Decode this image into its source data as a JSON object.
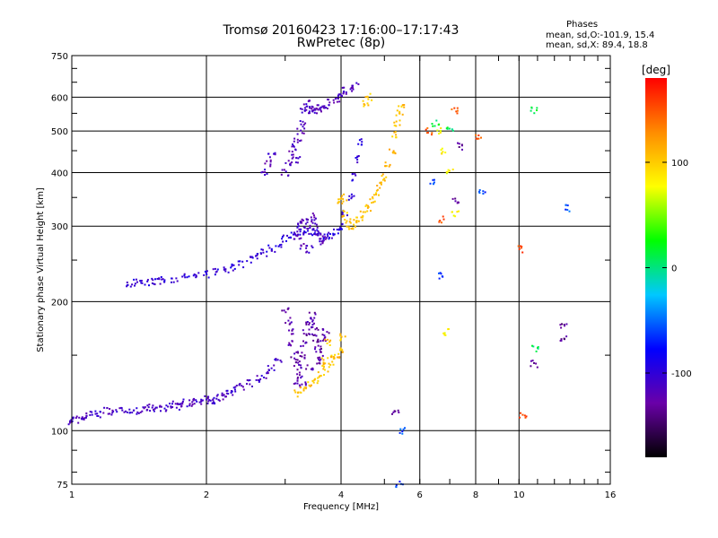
{
  "title": "Tromsø 20160423 17:16:00–17:17:43",
  "subtitle": "RwPretec (8p)",
  "phases": {
    "heading": "Phases",
    "line1": "mean, sd,O:-101.9, 15.4",
    "line2": "mean, sd,X:  89.4, 18.8"
  },
  "chart_data": {
    "type": "scatter",
    "title": "Tromsø 20160423 17:16:00–17:17:43",
    "subtitle": "RwPretec (8p)",
    "xlabel": "Frequency [MHz]",
    "ylabel": "Stationary phase Virtual Height [km]",
    "x_scale": "log",
    "y_scale": "log",
    "xlim": [
      1,
      16
    ],
    "ylim": [
      75,
      750
    ],
    "x_ticks": [
      1,
      2,
      4,
      6,
      8,
      10,
      16
    ],
    "x_grid": [
      1,
      2,
      4,
      6,
      8,
      10,
      16
    ],
    "y_ticks": [
      75,
      100,
      200,
      300,
      400,
      500,
      600,
      750
    ],
    "grid": true,
    "colorbar": {
      "label": "[deg]",
      "ticks": [
        100,
        0,
        -100
      ],
      "range": [
        -180,
        180
      ],
      "colors": [
        "#000000",
        "#6a00a8",
        "#0000ff",
        "#00c8ff",
        "#00ff00",
        "#ffff00",
        "#ff8c00",
        "#ff0000"
      ]
    },
    "series": [
      {
        "phase": -110,
        "points": [
          [
            1.0,
            105
          ],
          [
            1.02,
            107
          ],
          [
            1.05,
            106
          ],
          [
            1.08,
            108
          ],
          [
            1.12,
            110
          ],
          [
            1.16,
            109
          ],
          [
            1.2,
            111
          ],
          [
            1.25,
            110
          ],
          [
            1.3,
            111
          ],
          [
            1.35,
            112
          ],
          [
            1.4,
            111
          ],
          [
            1.45,
            112
          ],
          [
            1.5,
            113
          ],
          [
            1.55,
            112
          ],
          [
            1.6,
            113
          ],
          [
            1.65,
            114
          ],
          [
            1.7,
            115
          ],
          [
            1.75,
            114
          ],
          [
            1.8,
            116
          ],
          [
            1.85,
            116
          ],
          [
            1.9,
            117
          ],
          [
            1.95,
            117
          ],
          [
            2.0,
            118
          ],
          [
            2.05,
            117
          ],
          [
            2.1,
            118
          ],
          [
            2.15,
            119
          ],
          [
            2.2,
            121
          ],
          [
            2.25,
            123
          ],
          [
            2.3,
            125
          ],
          [
            2.4,
            127
          ],
          [
            2.5,
            129
          ],
          [
            2.6,
            132
          ],
          [
            2.7,
            135
          ],
          [
            2.8,
            140
          ],
          [
            2.9,
            145
          ]
        ]
      },
      {
        "phase": -125,
        "points": [
          [
            3.0,
            190
          ],
          [
            3.05,
            180
          ],
          [
            3.1,
            170
          ],
          [
            3.1,
            160
          ],
          [
            3.15,
            150
          ],
          [
            3.2,
            145
          ],
          [
            3.2,
            140
          ],
          [
            3.25,
            135
          ],
          [
            3.3,
            150
          ],
          [
            3.3,
            160
          ],
          [
            3.35,
            170
          ],
          [
            3.4,
            175
          ],
          [
            3.4,
            180
          ],
          [
            3.45,
            185
          ],
          [
            3.5,
            175
          ],
          [
            3.5,
            165
          ],
          [
            3.55,
            155
          ],
          [
            3.55,
            145
          ],
          [
            3.6,
            150
          ],
          [
            3.6,
            160
          ],
          [
            3.65,
            165
          ],
          [
            3.7,
            170
          ],
          [
            3.2,
            130
          ],
          [
            3.3,
            128
          ],
          [
            3.4,
            140
          ]
        ]
      },
      {
        "phase": -100,
        "points": [
          [
            1.35,
            220
          ],
          [
            1.4,
            221
          ],
          [
            1.45,
            220
          ],
          [
            1.5,
            222
          ],
          [
            1.55,
            223
          ],
          [
            1.6,
            224
          ],
          [
            1.7,
            226
          ],
          [
            1.8,
            228
          ],
          [
            1.9,
            230
          ],
          [
            2.0,
            232
          ],
          [
            2.1,
            235
          ],
          [
            2.2,
            238
          ],
          [
            2.3,
            241
          ],
          [
            2.4,
            245
          ],
          [
            2.5,
            250
          ],
          [
            2.6,
            255
          ],
          [
            2.7,
            260
          ],
          [
            2.8,
            266
          ],
          [
            2.9,
            272
          ],
          [
            3.0,
            280
          ],
          [
            3.1,
            285
          ],
          [
            3.2,
            288
          ],
          [
            3.3,
            290
          ],
          [
            3.4,
            292
          ],
          [
            3.5,
            290
          ],
          [
            3.6,
            285
          ],
          [
            3.7,
            282
          ],
          [
            3.8,
            285
          ],
          [
            3.9,
            290
          ],
          [
            4.0,
            300
          ],
          [
            4.1,
            320
          ],
          [
            4.2,
            350
          ],
          [
            4.3,
            390
          ],
          [
            4.35,
            430
          ],
          [
            4.4,
            470
          ]
        ]
      },
      {
        "phase": -115,
        "points": [
          [
            3.2,
            280
          ],
          [
            3.25,
            300
          ],
          [
            3.3,
            310
          ],
          [
            3.35,
            295
          ],
          [
            3.4,
            305
          ],
          [
            3.45,
            315
          ],
          [
            3.5,
            300
          ],
          [
            3.55,
            290
          ],
          [
            3.6,
            275
          ],
          [
            3.65,
            285
          ],
          [
            3.3,
            270
          ],
          [
            3.4,
            265
          ],
          [
            3.0,
            400
          ],
          [
            3.05,
            420
          ],
          [
            3.1,
            440
          ],
          [
            3.15,
            460
          ],
          [
            3.2,
            480
          ],
          [
            3.2,
            430
          ],
          [
            3.25,
            500
          ],
          [
            3.3,
            520
          ],
          [
            3.3,
            560
          ],
          [
            3.35,
            580
          ],
          [
            3.4,
            570
          ],
          [
            3.45,
            560
          ],
          [
            3.5,
            555
          ],
          [
            3.55,
            565
          ],
          [
            3.6,
            570
          ],
          [
            3.7,
            575
          ],
          [
            3.8,
            585
          ],
          [
            3.9,
            595
          ],
          [
            4.0,
            610
          ],
          [
            4.1,
            620
          ],
          [
            4.2,
            630
          ],
          [
            4.3,
            640
          ],
          [
            2.7,
            400
          ],
          [
            2.75,
            420
          ],
          [
            2.8,
            440
          ]
        ]
      },
      {
        "phase": 105,
        "points": [
          [
            4.0,
            340
          ],
          [
            4.05,
            350
          ],
          [
            4.1,
            320
          ],
          [
            4.15,
            310
          ],
          [
            4.2,
            300
          ],
          [
            4.3,
            305
          ],
          [
            4.4,
            310
          ],
          [
            4.5,
            320
          ],
          [
            4.6,
            330
          ],
          [
            4.7,
            345
          ],
          [
            4.8,
            360
          ],
          [
            4.9,
            375
          ],
          [
            5.0,
            390
          ],
          [
            5.1,
            420
          ],
          [
            5.2,
            450
          ],
          [
            5.3,
            490
          ],
          [
            5.35,
            520
          ],
          [
            5.4,
            550
          ],
          [
            5.45,
            570
          ],
          [
            4.55,
            580
          ],
          [
            4.6,
            600
          ],
          [
            3.2,
            122
          ],
          [
            3.3,
            124
          ],
          [
            3.4,
            128
          ],
          [
            3.5,
            131
          ],
          [
            3.6,
            135
          ],
          [
            3.7,
            140
          ],
          [
            3.8,
            145
          ],
          [
            3.9,
            150
          ],
          [
            4.0,
            155
          ],
          [
            4.05,
            165
          ],
          [
            3.75,
            160
          ],
          [
            3.85,
            150
          ],
          [
            3.65,
            145
          ]
        ]
      },
      {
        "phase": 80,
        "points": [
          [
            6.6,
            500
          ],
          [
            7.2,
            320
          ],
          [
            6.8,
            450
          ],
          [
            7.0,
            400
          ],
          [
            6.9,
            170
          ]
        ]
      },
      {
        "phase": 150,
        "points": [
          [
            6.3,
            500
          ],
          [
            7.2,
            560
          ],
          [
            6.7,
            310
          ],
          [
            8.1,
            480
          ],
          [
            10.0,
            265
          ],
          [
            10.2,
            108
          ]
        ]
      },
      {
        "phase": 10,
        "points": [
          [
            10.8,
            560
          ],
          [
            7.0,
            510
          ],
          [
            6.5,
            520
          ],
          [
            10.9,
            155
          ]
        ]
      },
      {
        "phase": -60,
        "points": [
          [
            6.4,
            380
          ],
          [
            6.7,
            230
          ],
          [
            8.3,
            360
          ],
          [
            12.8,
            330
          ],
          [
            5.4,
            75
          ],
          [
            5.5,
            100
          ]
        ]
      },
      {
        "phase": -135,
        "points": [
          [
            7.4,
            460
          ],
          [
            7.2,
            345
          ],
          [
            12.6,
            175
          ],
          [
            12.6,
            163
          ],
          [
            10.8,
            143
          ],
          [
            5.3,
            110
          ]
        ]
      }
    ]
  }
}
